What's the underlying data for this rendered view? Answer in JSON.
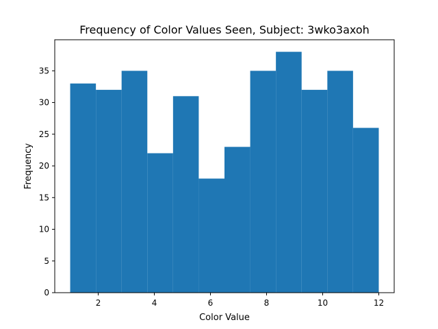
{
  "chart_data": {
    "type": "bar",
    "title": "Frequency of Color Values Seen, Subject: 3wko3axoh",
    "xlabel": "Color Value",
    "ylabel": "Frequency",
    "bin_edges": [
      1.0,
      1.917,
      2.833,
      3.75,
      4.667,
      5.583,
      6.5,
      7.417,
      8.333,
      9.25,
      10.167,
      11.083,
      12.0
    ],
    "values": [
      33,
      32,
      35,
      22,
      31,
      18,
      23,
      35,
      38,
      32,
      35,
      26
    ],
    "xlim": [
      0.45,
      12.55
    ],
    "ylim": [
      0,
      39.9
    ],
    "xticks": [
      2,
      4,
      6,
      8,
      10,
      12
    ],
    "yticks": [
      0,
      5,
      10,
      15,
      20,
      25,
      30,
      35
    ],
    "bar_color": "#1f77b4",
    "grid": false,
    "legend": "none"
  }
}
